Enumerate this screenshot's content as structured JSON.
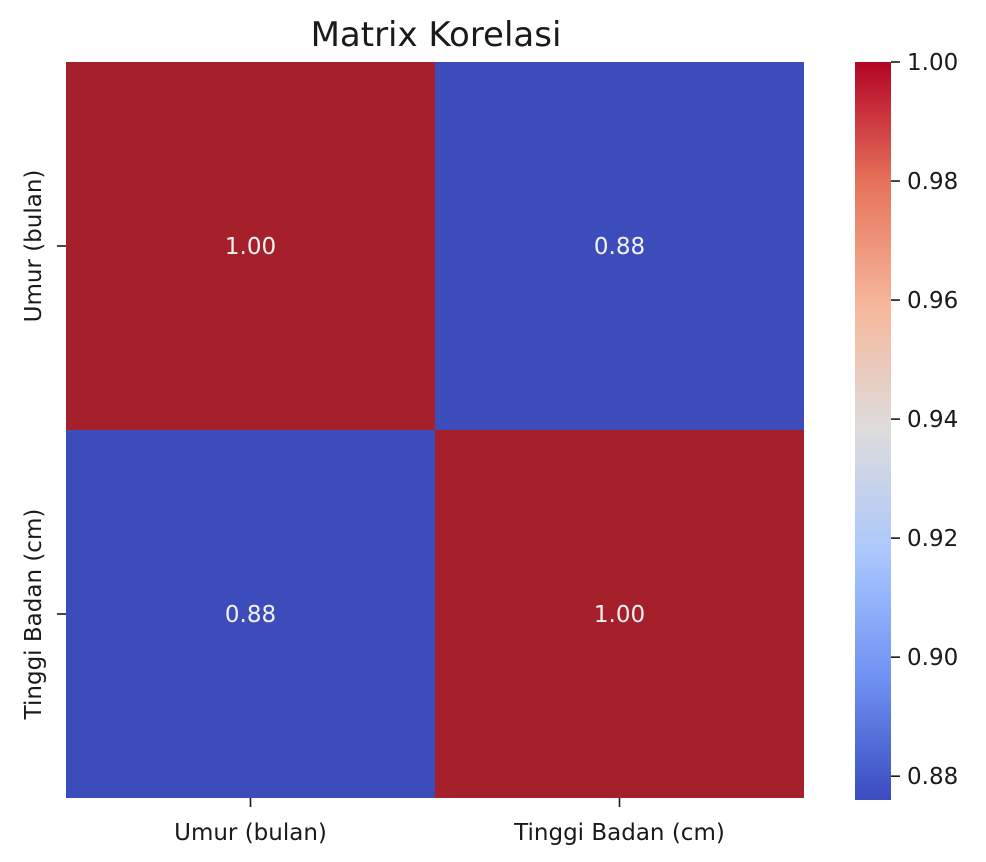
{
  "chart_data": {
    "type": "heatmap",
    "title": "Matrix Korelasi",
    "x_labels": [
      "Umur (bulan)",
      "Tinggi Badan (cm)"
    ],
    "y_labels": [
      "Umur (bulan)",
      "Tinggi Badan (cm)"
    ],
    "values": [
      [
        1.0,
        0.88
      ],
      [
        0.88,
        1.0
      ]
    ],
    "annotations": [
      [
        "1.00",
        "0.88"
      ],
      [
        "0.88",
        "1.00"
      ]
    ],
    "colormap": "coolwarm",
    "colorbar": {
      "min": 0.876,
      "max": 1.0,
      "ticks": [
        0.88,
        0.9,
        0.92,
        0.94,
        0.96,
        0.98,
        1.0
      ],
      "tick_labels": [
        "0.88",
        "0.90",
        "0.92",
        "0.94",
        "0.96",
        "0.98",
        "1.00"
      ],
      "placement": "right"
    },
    "colors": {
      "high": "#a5202b",
      "low": "#3c4dbb",
      "stops": [
        "#3b4cc0",
        "#6f92f3",
        "#aac7fd",
        "#dddcdc",
        "#f6b89c",
        "#e7745b",
        "#b40426"
      ]
    }
  }
}
